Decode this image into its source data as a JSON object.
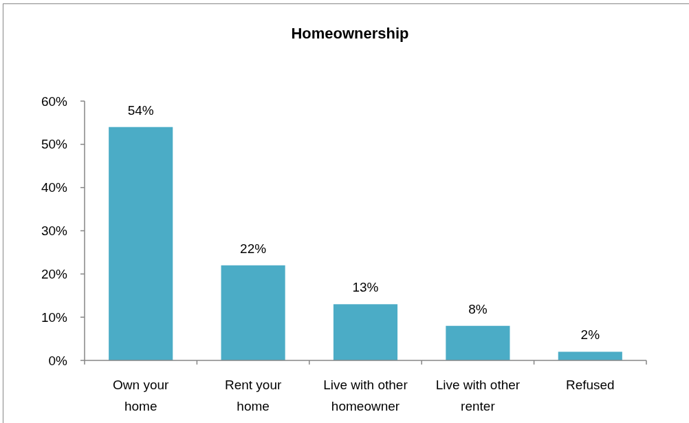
{
  "chart_data": {
    "type": "bar",
    "title": "Homeownership",
    "categories": [
      "Own your home",
      "Rent your home",
      "Live with other homeowner",
      "Live with other renter",
      "Refused"
    ],
    "values": [
      54,
      22,
      13,
      8,
      2
    ],
    "color": "#4bacc6",
    "value_labels": [
      "54%",
      "22%",
      "13%",
      "8%",
      "2%"
    ],
    "ylim": [
      0,
      60
    ],
    "yticks": [
      {
        "value": 0,
        "label": "0%"
      },
      {
        "value": 10,
        "label": "10%"
      },
      {
        "value": 20,
        "label": "20%"
      },
      {
        "value": 30,
        "label": "30%"
      },
      {
        "value": 40,
        "label": "40%"
      },
      {
        "value": 50,
        "label": "50%"
      },
      {
        "value": 60,
        "label": "60%"
      }
    ]
  }
}
